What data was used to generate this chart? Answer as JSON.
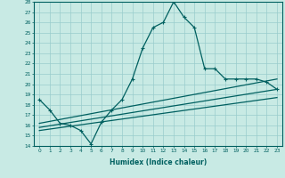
{
  "title": "",
  "xlabel": "Humidex (Indice chaleur)",
  "xlim": [
    -0.5,
    23.5
  ],
  "ylim": [
    14,
    28
  ],
  "yticks": [
    14,
    15,
    16,
    17,
    18,
    19,
    20,
    21,
    22,
    23,
    24,
    25,
    26,
    27,
    28
  ],
  "xticks": [
    0,
    1,
    2,
    3,
    4,
    5,
    6,
    7,
    8,
    9,
    10,
    11,
    12,
    13,
    14,
    15,
    16,
    17,
    18,
    19,
    20,
    21,
    22,
    23
  ],
  "background_color": "#c8eae4",
  "grid_color": "#99cccc",
  "line_color": "#006060",
  "line1_x": [
    0,
    1,
    2,
    3,
    4,
    5,
    6,
    7,
    8,
    9,
    10,
    11,
    12,
    13,
    14,
    15,
    16,
    17,
    18,
    19,
    20,
    21,
    22,
    23
  ],
  "line1_y": [
    18.5,
    17.5,
    16.2,
    16.0,
    15.5,
    14.2,
    16.3,
    17.5,
    18.5,
    20.5,
    23.5,
    25.5,
    26.0,
    28.0,
    26.5,
    25.5,
    21.5,
    21.5,
    20.5,
    20.5,
    20.5,
    20.5,
    20.2,
    19.5
  ],
  "line2_x": [
    0,
    23
  ],
  "line2_y": [
    16.2,
    20.5
  ],
  "line3_x": [
    0,
    23
  ],
  "line3_y": [
    15.5,
    18.7
  ],
  "line4_x": [
    0,
    23
  ],
  "line4_y": [
    15.8,
    19.5
  ]
}
